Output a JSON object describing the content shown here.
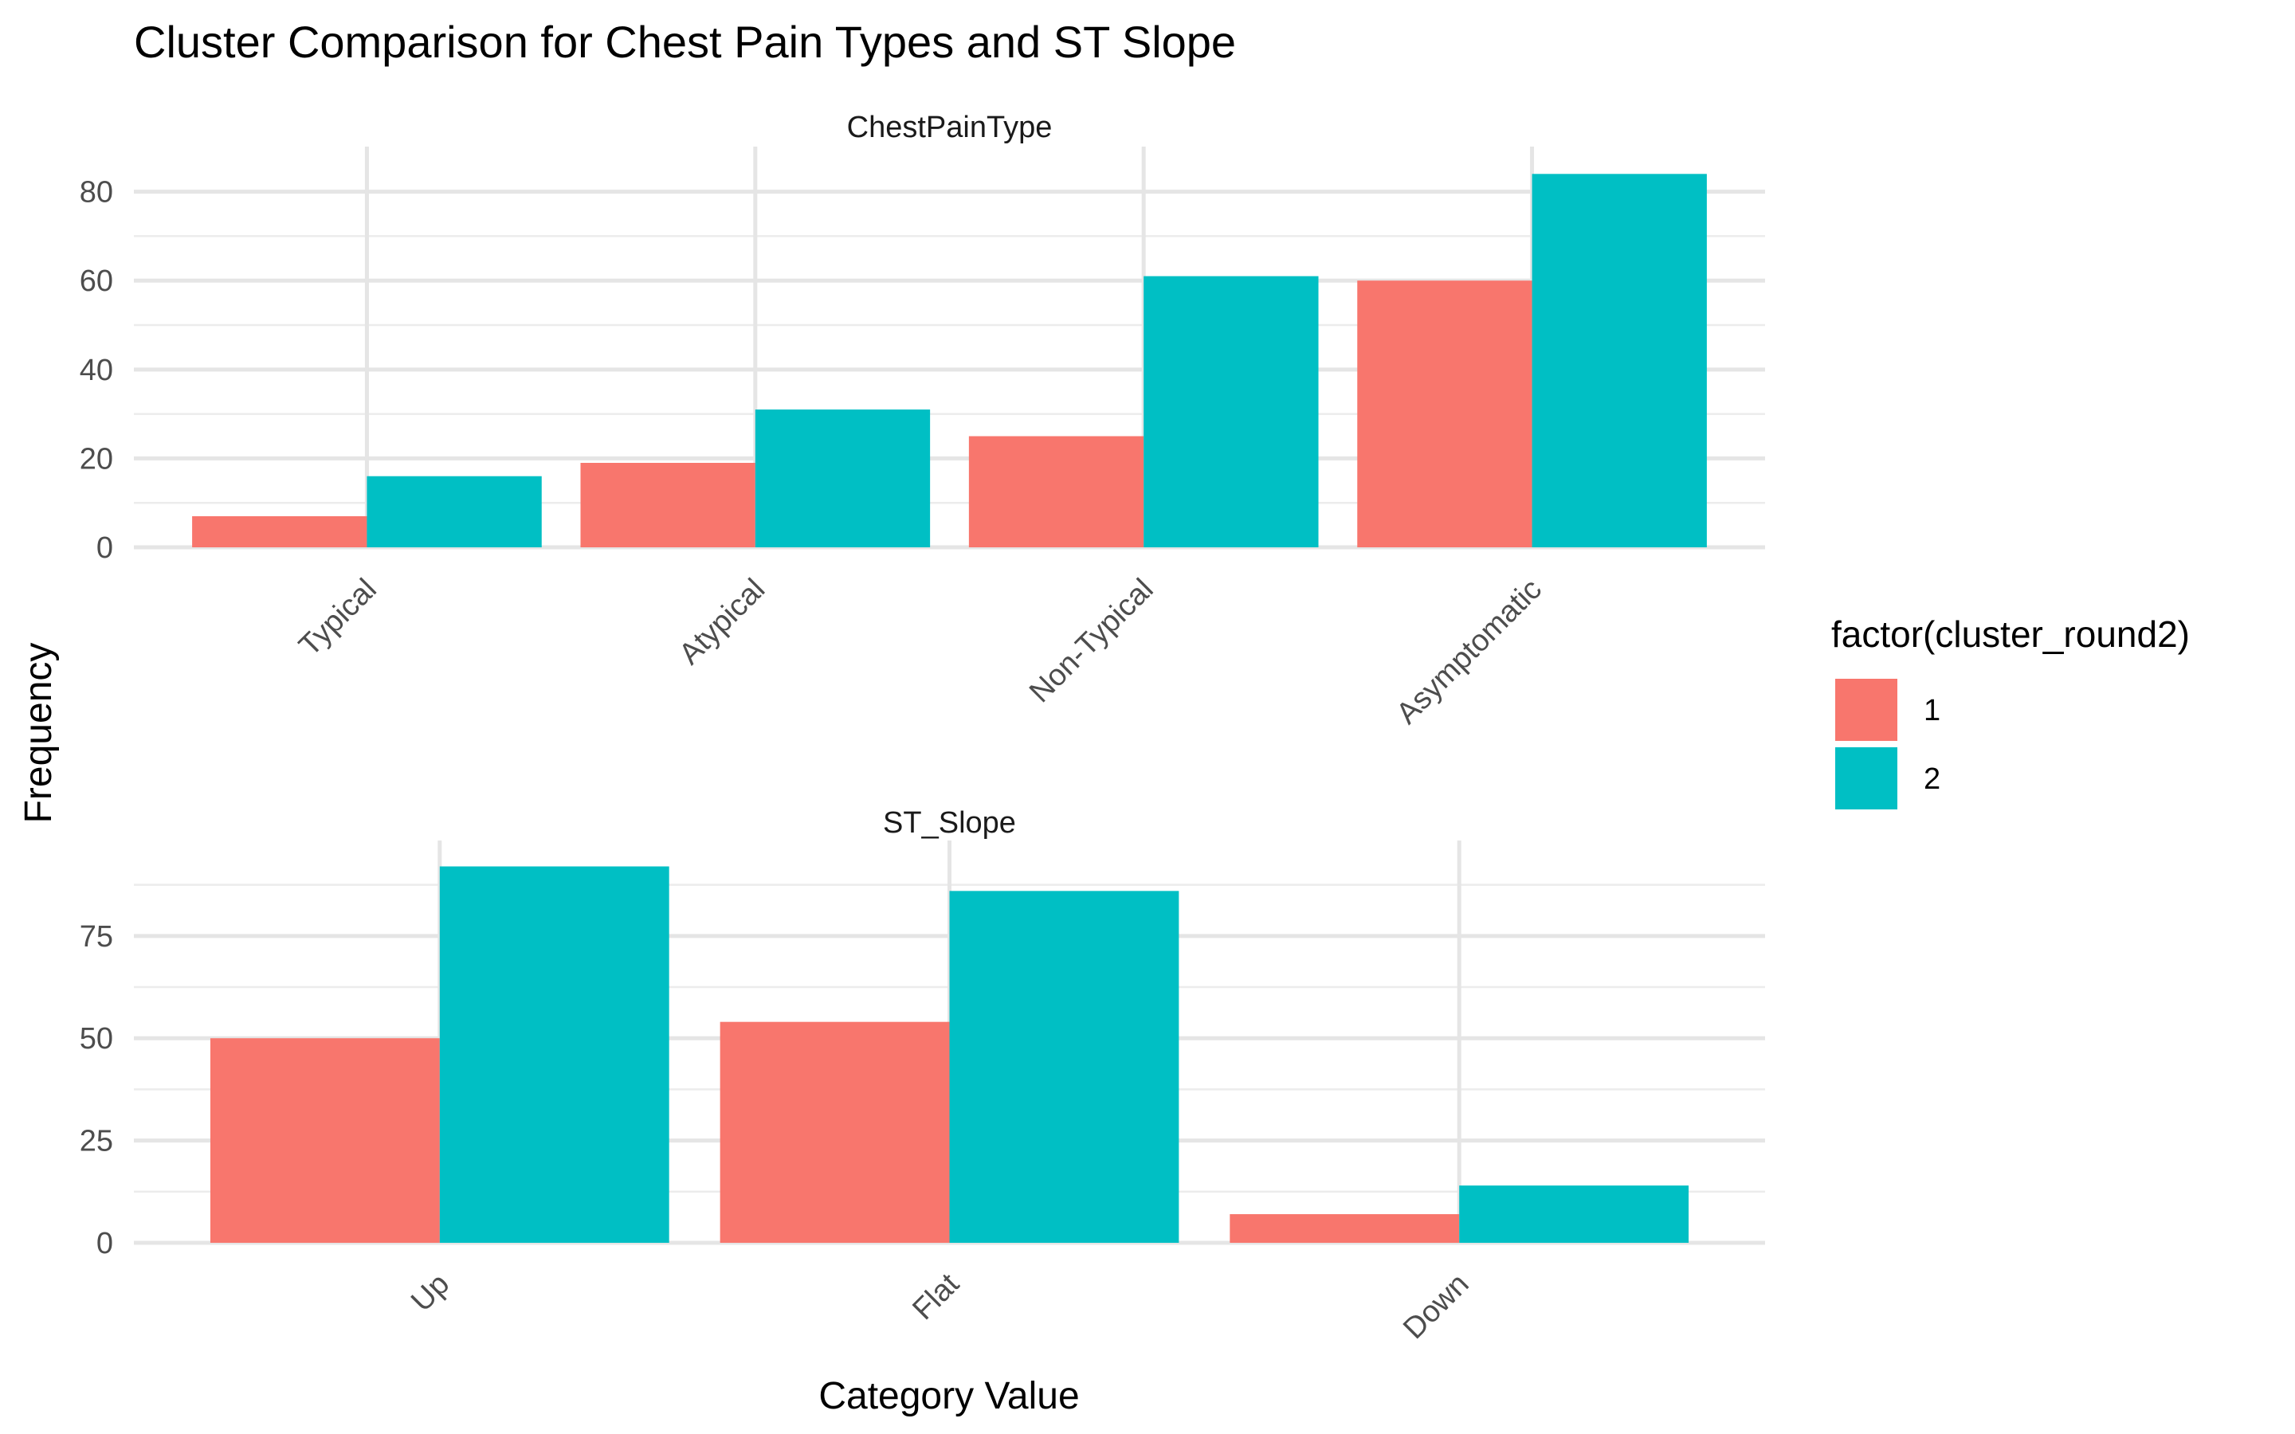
{
  "chart_data": {
    "type": "bar",
    "title": "Cluster Comparison for Chest Pain Types and ST Slope",
    "xlabel": "Category Value",
    "ylabel": "Frequency",
    "legend": {
      "title": "factor(cluster_round2)",
      "placement": "right",
      "entries": [
        "1",
        "2"
      ]
    },
    "colors": {
      "1": "#F8766D",
      "2": "#00BFC4"
    },
    "grid": true,
    "panels": [
      {
        "strip": "ChestPainType",
        "categories": [
          "Typical",
          "Atypical",
          "Non-Typical",
          "Asymptomatic"
        ],
        "series": [
          {
            "name": "1",
            "values": [
              7,
              19,
              25,
              60
            ]
          },
          {
            "name": "2",
            "values": [
              16,
              31,
              61,
              84
            ]
          }
        ],
        "ylim": [
          0,
          88
        ],
        "yticks": [
          0,
          20,
          40,
          60,
          80
        ]
      },
      {
        "strip": "ST_Slope",
        "categories": [
          "Up",
          "Flat",
          "Down"
        ],
        "series": [
          {
            "name": "1",
            "values": [
              50,
              54,
              7
            ]
          },
          {
            "name": "2",
            "values": [
              92,
              86,
              14
            ]
          }
        ],
        "ylim": [
          0,
          96
        ],
        "yticks": [
          0,
          25,
          50,
          75
        ]
      }
    ]
  }
}
